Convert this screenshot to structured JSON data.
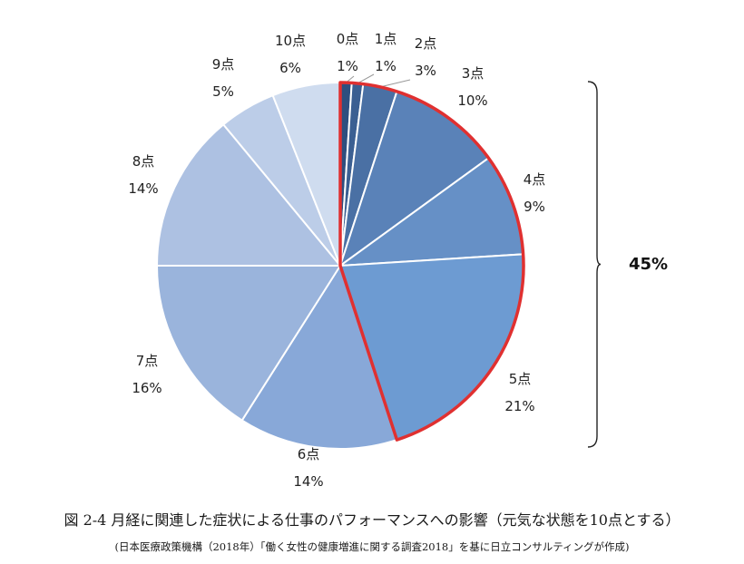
{
  "chart_data": {
    "type": "pie",
    "categories": [
      "0点",
      "1点",
      "2点",
      "3点",
      "4点",
      "5点",
      "6点",
      "7点",
      "8点",
      "9点",
      "10点"
    ],
    "values": [
      1,
      1,
      3,
      10,
      9,
      21,
      14,
      16,
      14,
      5,
      6
    ],
    "value_labels": [
      "1%",
      "1%",
      "3%",
      "10%",
      "9%",
      "21%",
      "14%",
      "16%",
      "14%",
      "5%",
      "6%"
    ],
    "colors": [
      "#2e4f7f",
      "#3b5f92",
      "#4a70a4",
      "#5a82b8",
      "#6690c6",
      "#6d9bd2",
      "#88a8d8",
      "#9ab4dc",
      "#adc1e2",
      "#bccde8",
      "#cfdcef"
    ],
    "highlight": {
      "categories": [
        "0点",
        "1点",
        "2点",
        "3点",
        "4点",
        "5点"
      ],
      "outline_color": "#e03030",
      "bracket_label": "45%"
    }
  },
  "caption": {
    "title": "図 2-4 月経に関連した症状による仕事のパフォーマンスへの影響（元気な状態を10点とする）",
    "source": "(日本医療政策機構（2018年）「働く女性の健康増進に関する調査2018」を基に日立コンサルティングが作成)"
  }
}
